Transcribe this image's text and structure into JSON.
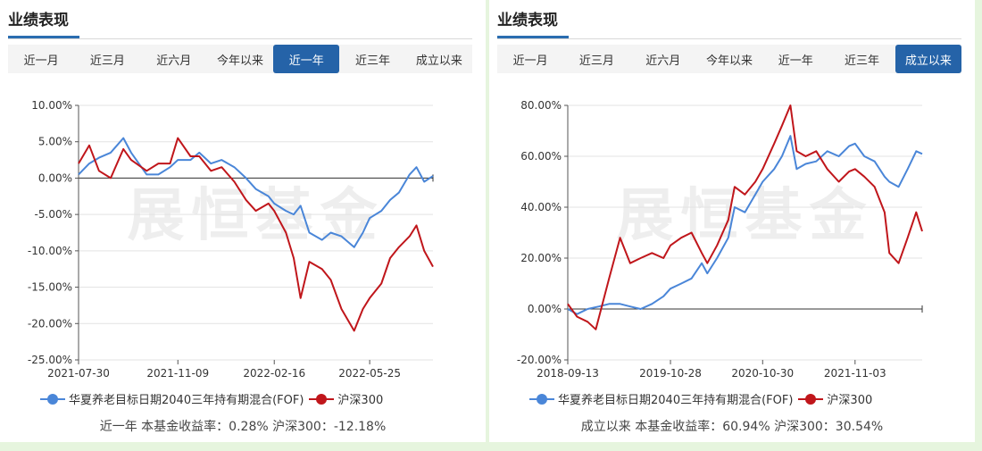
{
  "panels": [
    {
      "title": "业绩表现",
      "tabs": [
        "近一月",
        "近三月",
        "近六月",
        "今年以来",
        "近一年",
        "近三年",
        "成立以来"
      ],
      "active_tab": 4,
      "watermark": "展恒基金",
      "summary": "近一年 本基金收益率：0.28% 沪深300：-12.18%"
    },
    {
      "title": "业绩表现",
      "tabs": [
        "近一月",
        "近三月",
        "近六月",
        "今年以来",
        "近一年",
        "近三年",
        "成立以来"
      ],
      "active_tab": 6,
      "watermark": "展恒基金",
      "summary": "成立以来 本基金收益率：60.94% 沪深300：30.54%"
    }
  ],
  "colors": {
    "fund": "#4a86d8",
    "index": "#c0161b",
    "grid": "#e3e3e3",
    "axis": "#555555",
    "accent": "#2563a8"
  },
  "chart_data": [
    {
      "type": "line",
      "ylim": [
        -25,
        10
      ],
      "yticks": [
        "10.00%",
        "5.00%",
        "0.00%",
        "-5.00%",
        "-10.00%",
        "-15.00%",
        "-20.00%",
        "-25.00%"
      ],
      "xlim": [
        "2021-07-30",
        "2022-07-29"
      ],
      "xticks": [
        "2021-07-30",
        "2021-11-09",
        "2022-02-16",
        "2022-05-25"
      ],
      "series": [
        {
          "name": "华夏养老目标日期2040三年持有期混合(FOF)",
          "x": [
            "2021-07-30",
            "2021-08-10",
            "2021-08-20",
            "2021-09-01",
            "2021-09-14",
            "2021-09-22",
            "2021-10-08",
            "2021-10-20",
            "2021-11-01",
            "2021-11-09",
            "2021-11-22",
            "2021-12-01",
            "2021-12-13",
            "2021-12-24",
            "2022-01-06",
            "2022-01-18",
            "2022-01-28",
            "2022-02-10",
            "2022-02-16",
            "2022-02-28",
            "2022-03-08",
            "2022-03-15",
            "2022-03-24",
            "2022-04-06",
            "2022-04-15",
            "2022-04-26",
            "2022-05-09",
            "2022-05-18",
            "2022-05-25",
            "2022-06-06",
            "2022-06-15",
            "2022-06-24",
            "2022-07-05",
            "2022-07-12",
            "2022-07-20",
            "2022-07-29"
          ],
          "values": [
            0.5,
            2,
            2.8,
            3.5,
            5.5,
            3.5,
            0.5,
            0.5,
            1.5,
            2.5,
            2.5,
            3.5,
            2,
            2.5,
            1.5,
            0,
            -1.5,
            -2.5,
            -3.5,
            -4.5,
            -5,
            -3.8,
            -7.5,
            -8.5,
            -7.5,
            -8,
            -9.5,
            -7.5,
            -5.5,
            -4.5,
            -3,
            -2,
            0.5,
            1.5,
            -0.5,
            0.28
          ]
        },
        {
          "name": "沪深300",
          "x": [
            "2021-07-30",
            "2021-08-10",
            "2021-08-20",
            "2021-09-01",
            "2021-09-14",
            "2021-09-22",
            "2021-10-08",
            "2021-10-20",
            "2021-11-01",
            "2021-11-09",
            "2021-11-22",
            "2021-12-01",
            "2021-12-13",
            "2021-12-24",
            "2022-01-06",
            "2022-01-18",
            "2022-01-28",
            "2022-02-10",
            "2022-02-16",
            "2022-02-28",
            "2022-03-08",
            "2022-03-15",
            "2022-03-24",
            "2022-04-06",
            "2022-04-15",
            "2022-04-26",
            "2022-05-09",
            "2022-05-18",
            "2022-05-25",
            "2022-06-06",
            "2022-06-15",
            "2022-06-24",
            "2022-07-05",
            "2022-07-12",
            "2022-07-20",
            "2022-07-29"
          ],
          "values": [
            2,
            4.5,
            1,
            0,
            4,
            2.5,
            1,
            2,
            2,
            5.5,
            3,
            3,
            1,
            1.5,
            -0.5,
            -3,
            -4.5,
            -3.5,
            -4.5,
            -7.5,
            -11,
            -16.5,
            -11.5,
            -12.5,
            -14,
            -18,
            -21,
            -18,
            -16.5,
            -14.5,
            -11,
            -9.5,
            -8,
            -6.5,
            -10,
            -12.18
          ]
        }
      ]
    },
    {
      "type": "line",
      "ylim": [
        -20,
        80
      ],
      "yticks": [
        "80.00%",
        "60.00%",
        "40.00%",
        "20.00%",
        "0.00%",
        "-20.00%"
      ],
      "xlim": [
        "2018-09-13",
        "2022-07-29"
      ],
      "xticks": [
        "2018-09-13",
        "2019-10-28",
        "2020-10-30",
        "2021-11-03"
      ],
      "series": [
        {
          "name": "华夏养老目标日期2040三年持有期混合(FOF)",
          "x": [
            "2018-09-13",
            "2018-10-20",
            "2018-12-01",
            "2019-01-15",
            "2019-02-25",
            "2019-04-10",
            "2019-05-20",
            "2019-07-01",
            "2019-08-15",
            "2019-09-30",
            "2019-10-28",
            "2019-12-10",
            "2020-01-20",
            "2020-03-01",
            "2020-03-23",
            "2020-05-01",
            "2020-06-15",
            "2020-07-10",
            "2020-08-20",
            "2020-10-01",
            "2020-10-30",
            "2020-12-15",
            "2021-01-15",
            "2021-02-18",
            "2021-03-15",
            "2021-04-20",
            "2021-06-01",
            "2021-07-15",
            "2021-08-30",
            "2021-10-10",
            "2021-11-03",
            "2021-12-10",
            "2022-01-20",
            "2022-03-01",
            "2022-03-20",
            "2022-04-26",
            "2022-06-01",
            "2022-07-05",
            "2022-07-29"
          ],
          "values": [
            0,
            -2,
            0,
            1,
            2,
            2,
            1,
            0,
            2,
            5,
            8,
            10,
            12,
            18,
            14,
            20,
            28,
            40,
            38,
            45,
            50,
            55,
            60,
            68,
            55,
            57,
            58,
            62,
            60,
            64,
            65,
            60,
            58,
            52,
            50,
            48,
            55,
            62,
            60.94
          ]
        },
        {
          "name": "沪深300",
          "x": [
            "2018-09-13",
            "2018-10-20",
            "2018-12-01",
            "2019-01-03",
            "2019-02-25",
            "2019-04-10",
            "2019-05-20",
            "2019-07-01",
            "2019-08-15",
            "2019-09-30",
            "2019-10-28",
            "2019-12-10",
            "2020-01-20",
            "2020-03-01",
            "2020-03-23",
            "2020-05-01",
            "2020-06-15",
            "2020-07-10",
            "2020-08-20",
            "2020-10-01",
            "2020-10-30",
            "2020-12-15",
            "2021-01-15",
            "2021-02-18",
            "2021-03-15",
            "2021-04-20",
            "2021-06-01",
            "2021-07-15",
            "2021-08-30",
            "2021-10-10",
            "2021-11-03",
            "2021-12-10",
            "2022-01-20",
            "2022-03-01",
            "2022-03-20",
            "2022-04-26",
            "2022-06-01",
            "2022-07-05",
            "2022-07-29"
          ],
          "values": [
            2,
            -3,
            -5,
            -8,
            12,
            28,
            18,
            20,
            22,
            20,
            25,
            28,
            30,
            22,
            18,
            25,
            35,
            48,
            45,
            50,
            55,
            65,
            72,
            80,
            62,
            60,
            62,
            55,
            50,
            54,
            55,
            52,
            48,
            38,
            22,
            18,
            28,
            38,
            30.54
          ]
        }
      ]
    }
  ]
}
